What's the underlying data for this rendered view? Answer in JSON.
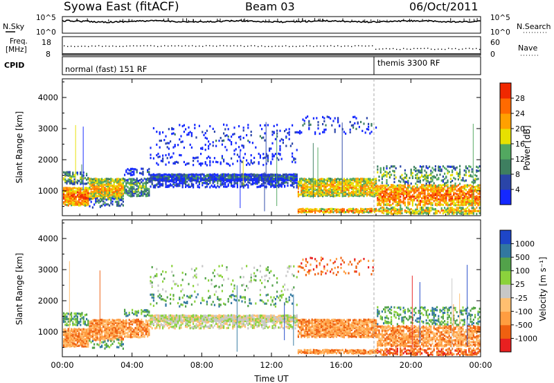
{
  "header": {
    "title": "Syowa East (fitACF)",
    "beam": "Beam 03",
    "date": "06/Oct/2011"
  },
  "panels": {
    "noise": {
      "left_label": "N.Sky",
      "right_label": "N.Search",
      "left_ticks": [
        "10^5",
        "10^0"
      ],
      "right_ticks": [
        "10^5",
        "10^0"
      ]
    },
    "freq": {
      "left_label_1": "Freq.",
      "left_label_2": "[MHz]",
      "right_label": "Nave",
      "left_ticks": [
        "18",
        "8"
      ],
      "right_ticks": [
        "60",
        "0"
      ]
    },
    "cpid": {
      "label": "CPID",
      "modes": [
        {
          "name": "normal (fast) 151 RF",
          "start_hour": 0
        },
        {
          "name": "themis 3300 RF",
          "start_hour": 18
        }
      ]
    }
  },
  "colors": {
    "power_scale": [
      "#1428ff",
      "#2a45a8",
      "#3e7f60",
      "#52a860",
      "#e7e100",
      "#ffa000",
      "#ff6a00",
      "#f02800"
    ],
    "velocity_scale": [
      "#e82020",
      "#ef6010",
      "#ff9d40",
      "#ffbf70",
      "#c7c7c7",
      "#8bd23c",
      "#52a24a",
      "#3278a0",
      "#1e46c8"
    ],
    "gate_gray": "#c8c8c8"
  },
  "chart_data": [
    {
      "type": "heatmap",
      "name": "power",
      "ylabel": "Slant Range [km]",
      "xlabel": "",
      "ylim": [
        200,
        4600
      ],
      "xlim": [
        0,
        24
      ],
      "yticks": [
        "1000",
        "2000",
        "3000",
        "4000"
      ],
      "colorbar_label": "Power [dB]",
      "colorbar_ticks": [
        "4",
        "8",
        "12",
        "16",
        "20",
        "24",
        "28"
      ],
      "colorbar_range": [
        0,
        32
      ]
    },
    {
      "type": "heatmap",
      "name": "velocity",
      "ylabel": "Slant Range [km]",
      "xlabel": "Time UT",
      "ylim": [
        200,
        4600
      ],
      "xlim": [
        0,
        24
      ],
      "yticks": [
        "1000",
        "2000",
        "3000",
        "4000"
      ],
      "xticks": [
        "00:00",
        "04:00",
        "08:00",
        "12:00",
        "16:00",
        "20:00",
        "00:00"
      ],
      "colorbar_label": "Velocity [m s⁻¹]",
      "colorbar_ticks": [
        "1000",
        "500",
        "100",
        "25",
        "-25",
        "-100",
        "-500",
        "-1000"
      ]
    }
  ]
}
